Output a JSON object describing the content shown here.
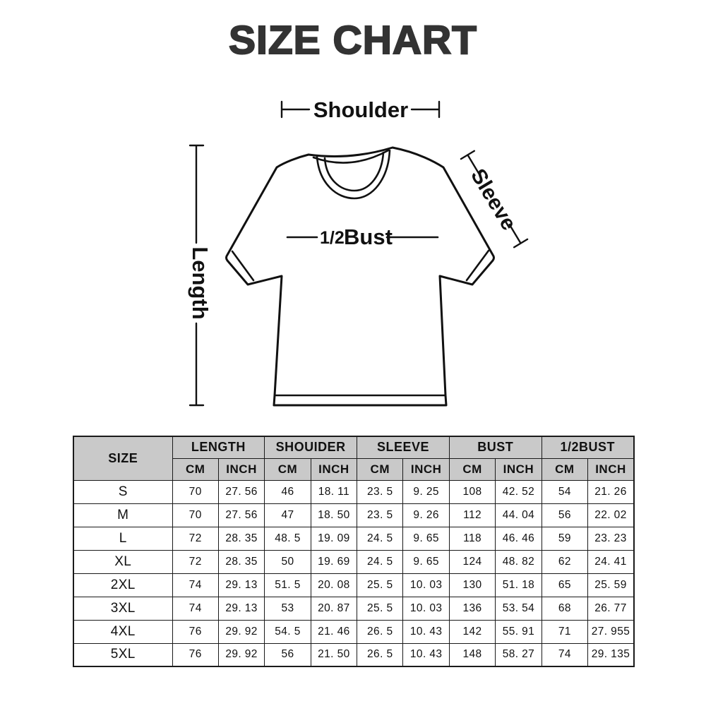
{
  "title": "SIZE CHART",
  "colors": {
    "title": "#333333",
    "line_art": "#111111",
    "table_border": "#1a1a1a",
    "header_background": "#c9c9c9",
    "page_background": "#ffffff"
  },
  "diagram": {
    "shoulder_label": "Shoulder",
    "sleeve_label": "Sleeve",
    "length_label": "Length",
    "bust_prefix": "1/2",
    "bust_word": "Bust"
  },
  "table": {
    "size_header": "SIZE",
    "groups": [
      "LENGTH",
      "SHOUIDER",
      "SLEEVE",
      "BUST",
      "1/2BUST"
    ],
    "sub_headers": [
      "CM",
      "INCH",
      "CM",
      "INCH",
      "CM",
      "INCH",
      "CM",
      "INCH",
      "CM",
      "INCH"
    ],
    "rows": [
      {
        "size": "S",
        "cells": [
          "70",
          "27. 56",
          "46",
          "18. 11",
          "23. 5",
          "9. 25",
          "108",
          "42. 52",
          "54",
          "21. 26"
        ]
      },
      {
        "size": "M",
        "cells": [
          "70",
          "27. 56",
          "47",
          "18. 50",
          "23. 5",
          "9. 26",
          "112",
          "44. 04",
          "56",
          "22. 02"
        ]
      },
      {
        "size": "L",
        "cells": [
          "72",
          "28. 35",
          "48. 5",
          "19. 09",
          "24. 5",
          "9. 65",
          "118",
          "46. 46",
          "59",
          "23. 23"
        ]
      },
      {
        "size": "XL",
        "cells": [
          "72",
          "28. 35",
          "50",
          "19. 69",
          "24. 5",
          "9. 65",
          "124",
          "48. 82",
          "62",
          "24. 41"
        ]
      },
      {
        "size": "2XL",
        "cells": [
          "74",
          "29. 13",
          "51. 5",
          "20. 08",
          "25. 5",
          "10. 03",
          "130",
          "51. 18",
          "65",
          "25. 59"
        ]
      },
      {
        "size": "3XL",
        "cells": [
          "74",
          "29. 13",
          "53",
          "20. 87",
          "25. 5",
          "10. 03",
          "136",
          "53. 54",
          "68",
          "26. 77"
        ]
      },
      {
        "size": "4XL",
        "cells": [
          "76",
          "29. 92",
          "54. 5",
          "21. 46",
          "26. 5",
          "10. 43",
          "142",
          "55. 91",
          "71",
          "27. 955"
        ]
      },
      {
        "size": "5XL",
        "cells": [
          "76",
          "29. 92",
          "56",
          "21. 50",
          "26. 5",
          "10. 43",
          "148",
          "58. 27",
          "74",
          "29. 135"
        ]
      }
    ]
  },
  "chart_data": {
    "type": "table",
    "title": "SIZE CHART",
    "columns": [
      "SIZE",
      "LENGTH CM",
      "LENGTH INCH",
      "SHOUIDER CM",
      "SHOUIDER INCH",
      "SLEEVE CM",
      "SLEEVE INCH",
      "BUST CM",
      "BUST INCH",
      "1/2BUST CM",
      "1/2BUST INCH"
    ],
    "rows": [
      [
        "S",
        70,
        27.56,
        46,
        18.11,
        23.5,
        9.25,
        108,
        42.52,
        54,
        21.26
      ],
      [
        "M",
        70,
        27.56,
        47,
        18.5,
        23.5,
        9.26,
        112,
        44.04,
        56,
        22.02
      ],
      [
        "L",
        72,
        28.35,
        48.5,
        19.09,
        24.5,
        9.65,
        118,
        46.46,
        59,
        23.23
      ],
      [
        "XL",
        72,
        28.35,
        50,
        19.69,
        24.5,
        9.65,
        124,
        48.82,
        62,
        24.41
      ],
      [
        "2XL",
        74,
        29.13,
        51.5,
        20.08,
        25.5,
        10.03,
        130,
        51.18,
        65,
        25.59
      ],
      [
        "3XL",
        74,
        29.13,
        53,
        20.87,
        25.5,
        10.03,
        136,
        53.54,
        68,
        26.77
      ],
      [
        "4XL",
        76,
        29.92,
        54.5,
        21.46,
        26.5,
        10.43,
        142,
        55.91,
        71,
        27.955
      ],
      [
        "5XL",
        76,
        29.92,
        56,
        21.5,
        26.5,
        10.43,
        148,
        58.27,
        74,
        29.135
      ]
    ]
  }
}
